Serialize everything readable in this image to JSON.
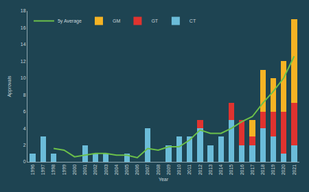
{
  "chart_data": {
    "type": "bar",
    "stacked": true,
    "x_label": "Year",
    "y_label": "Approvals",
    "categories": [
      "1996",
      "1997",
      "1998",
      "1999",
      "2000",
      "2001",
      "2002",
      "2003",
      "2004",
      "2005",
      "2006",
      "2007",
      "2008",
      "2009",
      "2010",
      "2011",
      "2012",
      "2013",
      "2014",
      "2015",
      "2016",
      "2017",
      "2018",
      "2019",
      "2020",
      "2021"
    ],
    "series": [
      {
        "name": "CT",
        "color": "#6bbcd9",
        "values": [
          1,
          3,
          1,
          0,
          0,
          2,
          1,
          1,
          0,
          1,
          0,
          4,
          0,
          2,
          3,
          3,
          4,
          2,
          3,
          5,
          2,
          2,
          4,
          3,
          1,
          2
        ]
      },
      {
        "name": "GT",
        "color": "#e0332f",
        "values": [
          0,
          0,
          0,
          0,
          0,
          0,
          0,
          0,
          0,
          0,
          0,
          0,
          0,
          0,
          0,
          0,
          1,
          0,
          0,
          2,
          3,
          1,
          2,
          3,
          5,
          5
        ]
      },
      {
        "name": "GM",
        "color": "#f5b324",
        "values": [
          0,
          0,
          0,
          0,
          0,
          0,
          0,
          0,
          0,
          0,
          0,
          0,
          0,
          0,
          0,
          0,
          0,
          0,
          0,
          0,
          0,
          2,
          5,
          4,
          6,
          10
        ]
      },
      {
        "name": "5y Average",
        "color": "#6cc04a",
        "type": "line",
        "values": [
          null,
          null,
          1.6,
          1.4,
          0.6,
          0.8,
          1.0,
          1.0,
          0.8,
          0.8,
          0.5,
          1.6,
          1.4,
          1.8,
          1.8,
          2.6,
          3.8,
          3.4,
          3.4,
          4.0,
          4.8,
          5.4,
          7.0,
          8.4,
          10.0,
          12.6
        ]
      }
    ],
    "ylim": [
      0,
      18
    ],
    "yticks": [
      0,
      2,
      4,
      6,
      8,
      10,
      12,
      14,
      16,
      18
    ],
    "grid": false,
    "legend": "top left"
  }
}
